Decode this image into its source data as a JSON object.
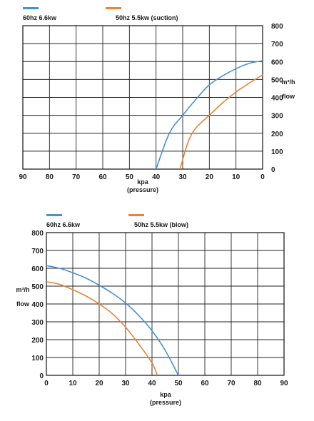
{
  "chart_data": [
    {
      "type": "line",
      "x": {
        "ticks": [
          90,
          80,
          70,
          60,
          50,
          40,
          30,
          20,
          10,
          0
        ],
        "range": [
          90,
          0
        ],
        "label": "kpa",
        "sublabel": "(pressure)"
      },
      "y": {
        "ticks": [
          0,
          100,
          200,
          300,
          400,
          500,
          600,
          700,
          800
        ],
        "range": [
          0,
          800
        ],
        "label": "m³/h",
        "sublabel": "flow"
      },
      "grid": true,
      "legend_position": "top-left",
      "series": [
        {
          "name": "60hz 6.6kw",
          "color": "#4a8fd1",
          "points": [
            [
              40,
              0
            ],
            [
              35,
              200
            ],
            [
              30,
              300
            ],
            [
              25,
              390
            ],
            [
              20,
              470
            ],
            [
              15,
              520
            ],
            [
              10,
              560
            ],
            [
              5,
              590
            ],
            [
              0,
              605
            ]
          ]
        },
        {
          "name": "50hz  5.5kw  (suction)",
          "color": "#e8833a",
          "points": [
            [
              31,
              0
            ],
            [
              28,
              150
            ],
            [
              25,
              230
            ],
            [
              20,
              300
            ],
            [
              15,
              370
            ],
            [
              10,
              430
            ],
            [
              5,
              480
            ],
            [
              0,
              525
            ]
          ]
        }
      ]
    },
    {
      "type": "line",
      "x": {
        "ticks": [
          0,
          10,
          20,
          30,
          40,
          50,
          60,
          70,
          80,
          90
        ],
        "range": [
          0,
          90
        ],
        "label": "kpa",
        "sublabel": "(pressure)"
      },
      "y": {
        "ticks": [
          0,
          100,
          200,
          300,
          400,
          500,
          600,
          700,
          800
        ],
        "range": [
          0,
          800
        ],
        "label": "m³/h",
        "sublabel": "flow"
      },
      "grid": true,
      "legend_position": "top-left",
      "series": [
        {
          "name": "60hz 6.6kw",
          "color": "#4a8fd1",
          "points": [
            [
              0,
              615
            ],
            [
              5,
              600
            ],
            [
              10,
              575
            ],
            [
              15,
              545
            ],
            [
              20,
              505
            ],
            [
              25,
              460
            ],
            [
              30,
              405
            ],
            [
              35,
              335
            ],
            [
              40,
              250
            ],
            [
              45,
              140
            ],
            [
              50,
              0
            ]
          ]
        },
        {
          "name": "50hz  5.5kw  (blow)",
          "color": "#e8833a",
          "points": [
            [
              0,
              525
            ],
            [
              5,
              510
            ],
            [
              10,
              480
            ],
            [
              15,
              445
            ],
            [
              20,
              400
            ],
            [
              25,
              345
            ],
            [
              30,
              270
            ],
            [
              35,
              175
            ],
            [
              40,
              70
            ],
            [
              42,
              0
            ]
          ]
        }
      ]
    }
  ]
}
